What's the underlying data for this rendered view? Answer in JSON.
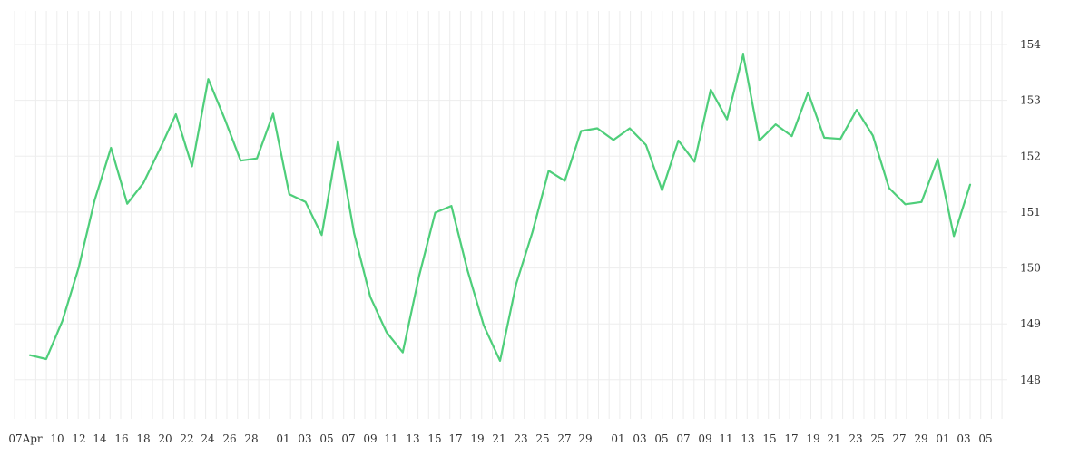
{
  "colors": {
    "line": "#4ece7a",
    "grid": "#ececec",
    "text": "#333333"
  },
  "chart_data": {
    "type": "line",
    "title": "",
    "xlabel": "",
    "ylabel": "",
    "y_axis_position": "right",
    "grid": true,
    "legend": "none",
    "ylim": [
      147.3,
      154.6
    ],
    "y_ticks": [
      148,
      149,
      150,
      151,
      152,
      153,
      154
    ],
    "x_tick_labels": [
      "07Apr",
      "10",
      "12",
      "14",
      "16",
      "18",
      "20",
      "22",
      "24",
      "26",
      "28",
      "01",
      "03",
      "05",
      "07",
      "09",
      "11",
      "13",
      "15",
      "17",
      "19",
      "21",
      "23",
      "25",
      "27",
      "29",
      "01",
      "03",
      "05",
      "07",
      "09",
      "11",
      "13",
      "15",
      "17",
      "19",
      "21",
      "23",
      "25",
      "27",
      "29",
      "01",
      "03",
      "05"
    ],
    "series": [
      {
        "values": [
          148.44,
          148.37,
          149.05,
          150.0,
          151.22,
          152.15,
          151.15,
          151.52,
          152.12,
          152.75,
          151.82,
          153.38,
          152.68,
          151.92,
          151.96,
          152.76,
          151.32,
          151.18,
          150.59,
          152.27,
          150.62,
          149.48,
          148.85,
          148.49,
          149.85,
          150.99,
          151.11,
          149.95,
          148.97,
          148.34,
          149.72,
          150.64,
          151.74,
          151.56,
          152.45,
          152.5,
          152.29,
          152.5,
          152.2,
          151.39,
          152.28,
          151.9,
          153.19,
          152.66,
          153.82,
          152.28,
          152.57,
          152.36,
          153.14,
          152.33,
          152.31,
          152.83,
          152.37,
          151.43,
          151.14,
          151.18,
          151.95,
          150.57,
          151.49
        ]
      }
    ]
  }
}
